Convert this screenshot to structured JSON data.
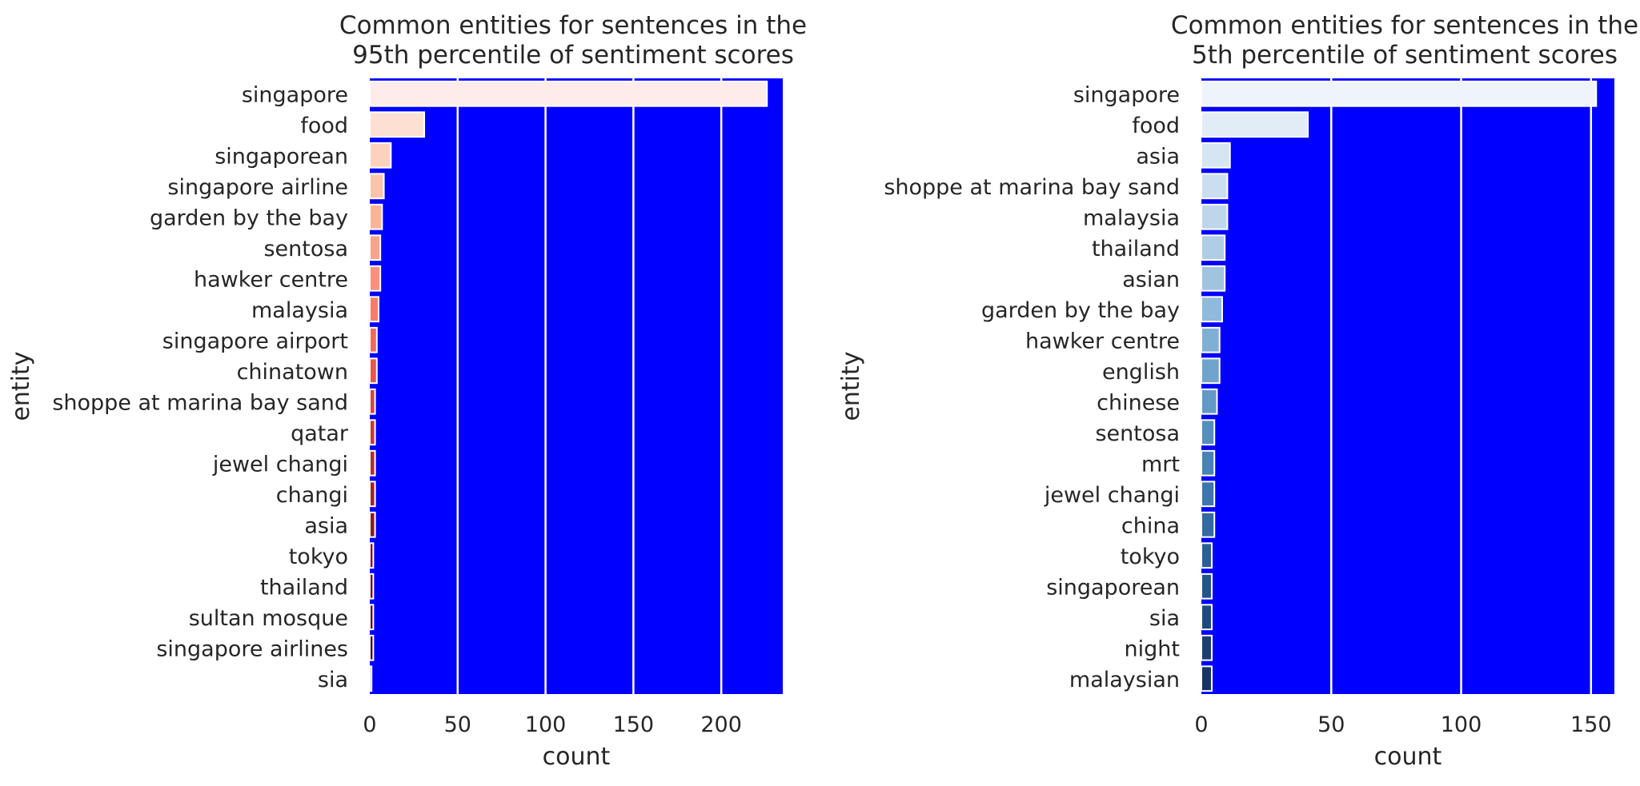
{
  "chart_data": [
    {
      "type": "bar",
      "orientation": "horizontal",
      "title": "Common entities for sentences in the\n95th percentile of sentiment scores",
      "xlabel": "count",
      "ylabel": "entity",
      "xlim": [
        0,
        235
      ],
      "xticks": [
        0,
        50,
        100,
        150,
        200
      ],
      "grid": true,
      "plot_background": "#0000ff",
      "palette": "reds",
      "categories": [
        "singapore",
        "food",
        "singaporean",
        "singapore airline",
        "garden by the bay",
        "sentosa",
        "hawker centre",
        "malaysia",
        "singapore airport",
        "chinatown",
        "shoppe at marina bay sand",
        "qatar",
        "jewel changi",
        "changi",
        "asia",
        "tokyo",
        "thailand",
        "sultan mosque",
        "singapore airlines",
        "sia"
      ],
      "values": [
        226,
        31,
        12,
        8,
        7,
        6,
        6,
        5,
        4,
        4,
        3,
        3,
        3,
        3,
        3,
        2,
        2,
        2,
        2,
        1
      ],
      "colors": [
        "#fdecea",
        "#fde0d2",
        "#fcd2be",
        "#fcc3ab",
        "#fbb49a",
        "#faa38a",
        "#f9917a",
        "#f57d69",
        "#f0695a",
        "#e7564b",
        "#db443e",
        "#cc3634",
        "#bb2a2c",
        "#a82124",
        "#94191f",
        "#7f141c",
        "#6b1119",
        "#570f17",
        "#440d16",
        "#2f0b14"
      ]
    },
    {
      "type": "bar",
      "orientation": "horizontal",
      "title": "Common entities for sentences in the\n5th percentile of sentiment scores",
      "xlabel": "count",
      "ylabel": "entity",
      "xlim": [
        0,
        159
      ],
      "xticks": [
        0,
        50,
        100,
        150
      ],
      "grid": true,
      "plot_background": "#0000ff",
      "palette": "blues",
      "categories": [
        "singapore",
        "food",
        "asia",
        "shoppe at marina bay sand",
        "malaysia",
        "thailand",
        "asian",
        "garden by the bay",
        "hawker centre",
        "english",
        "chinese",
        "sentosa",
        "mrt",
        "jewel changi",
        "china",
        "tokyo",
        "singaporean",
        "sia",
        "night",
        "malaysian"
      ],
      "values": [
        152,
        41,
        11,
        10,
        10,
        9,
        9,
        8,
        7,
        7,
        6,
        5,
        5,
        5,
        5,
        4,
        4,
        4,
        4,
        4
      ],
      "colors": [
        "#eff4fb",
        "#e2ecf6",
        "#d6e5f2",
        "#cadeef",
        "#bdd6ea",
        "#afcee5",
        "#a0c4e0",
        "#90badb",
        "#80afd4",
        "#70a4cd",
        "#6299c6",
        "#548ebe",
        "#4783b5",
        "#3b77ac",
        "#316ba2",
        "#285f97",
        "#22558c",
        "#1d4a80",
        "#193f73",
        "#163566"
      ]
    }
  ]
}
